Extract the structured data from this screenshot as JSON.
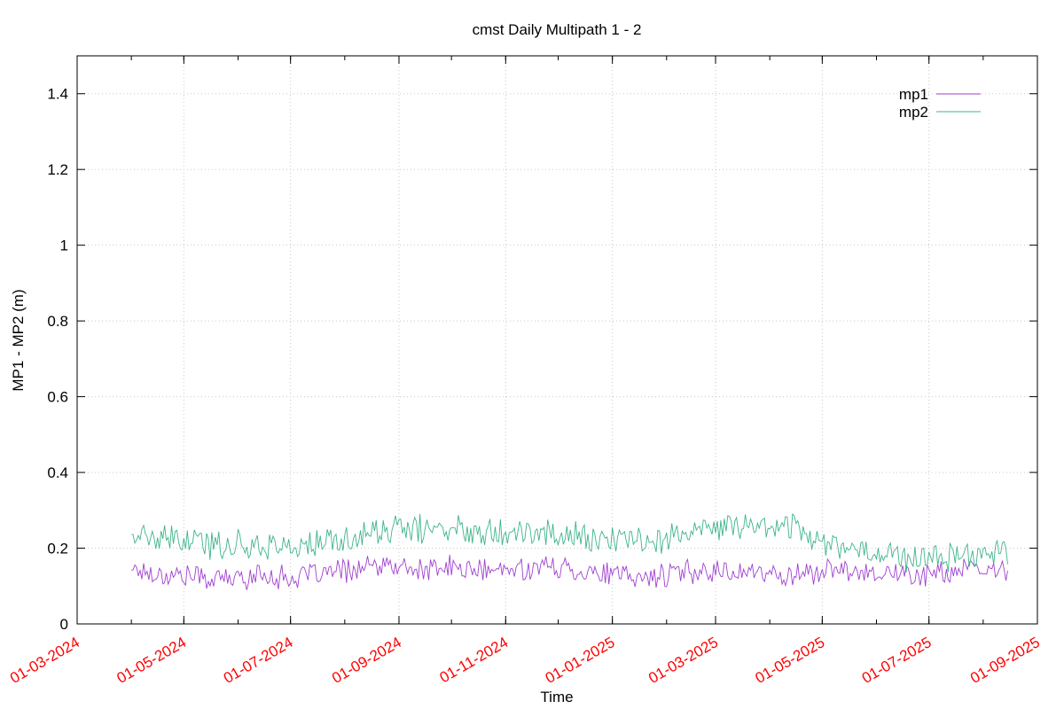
{
  "chart_data": {
    "type": "line",
    "title": "cmst Daily Multipath 1 - 2",
    "xlabel": "Time",
    "ylabel": "MP1 - MP2 (m)",
    "x_type": "date",
    "xlim": [
      "2024-03-01",
      "2025-09-01"
    ],
    "ylim": [
      0,
      1.5
    ],
    "y_ticks": [
      0,
      0.2,
      0.4,
      0.6,
      0.8,
      1,
      1.2,
      1.4
    ],
    "y_tick_labels": [
      "0",
      "0.2",
      "0.4",
      "0.6",
      "0.8",
      "1",
      "1.2",
      "1.4"
    ],
    "x_ticks": [
      "2024-03-01",
      "2024-05-01",
      "2024-07-01",
      "2024-09-01",
      "2024-11-01",
      "2025-01-01",
      "2025-03-01",
      "2025-05-01",
      "2025-07-01",
      "2025-09-01"
    ],
    "x_tick_labels": [
      "01-03-2024",
      "01-05-2024",
      "01-07-2024",
      "01-09-2024",
      "01-11-2024",
      "01-01-2025",
      "01-03-2025",
      "01-05-2025",
      "01-07-2025",
      "01-09-2025"
    ],
    "x_tick_label_color": "#ff0000",
    "grid": true,
    "legend_position": "top-right",
    "series": [
      {
        "name": "mp1",
        "color": "#a040d0",
        "x": [
          "2024-04-01",
          "2024-04-15",
          "2024-05-01",
          "2024-05-15",
          "2024-06-01",
          "2024-06-15",
          "2024-07-01",
          "2024-07-15",
          "2024-08-01",
          "2024-08-15",
          "2024-09-01",
          "2024-09-15",
          "2024-10-01",
          "2024-10-15",
          "2024-11-01",
          "2024-11-15",
          "2024-12-01",
          "2024-12-15",
          "2025-01-01",
          "2025-01-15",
          "2025-02-01",
          "2025-02-15",
          "2025-03-01",
          "2025-03-15",
          "2025-04-01",
          "2025-04-15",
          "2025-05-01",
          "2025-05-15",
          "2025-06-01",
          "2025-06-15",
          "2025-07-01",
          "2025-07-15",
          "2025-08-01",
          "2025-08-15"
        ],
        "values": [
          0.15,
          0.13,
          0.13,
          0.12,
          0.12,
          0.13,
          0.12,
          0.13,
          0.14,
          0.15,
          0.15,
          0.14,
          0.15,
          0.14,
          0.14,
          0.15,
          0.15,
          0.14,
          0.13,
          0.12,
          0.13,
          0.14,
          0.14,
          0.14,
          0.13,
          0.13,
          0.14,
          0.14,
          0.14,
          0.13,
          0.13,
          0.14,
          0.14,
          0.14
        ],
        "noise": 0.045
      },
      {
        "name": "mp2",
        "color": "#3eb489",
        "x": [
          "2024-04-01",
          "2024-04-15",
          "2024-05-01",
          "2024-05-15",
          "2024-06-01",
          "2024-06-15",
          "2024-07-01",
          "2024-07-15",
          "2024-08-01",
          "2024-08-15",
          "2024-09-01",
          "2024-09-15",
          "2024-10-01",
          "2024-10-15",
          "2024-11-01",
          "2024-11-15",
          "2024-12-01",
          "2024-12-15",
          "2025-01-01",
          "2025-01-15",
          "2025-02-01",
          "2025-02-15",
          "2025-03-01",
          "2025-03-15",
          "2025-04-01",
          "2025-04-15",
          "2025-05-01",
          "2025-05-15",
          "2025-06-01",
          "2025-06-15",
          "2025-07-01",
          "2025-07-15",
          "2025-08-01",
          "2025-08-15"
        ],
        "values": [
          0.24,
          0.22,
          0.22,
          0.21,
          0.21,
          0.21,
          0.2,
          0.21,
          0.22,
          0.24,
          0.25,
          0.25,
          0.25,
          0.25,
          0.25,
          0.24,
          0.24,
          0.23,
          0.22,
          0.22,
          0.23,
          0.24,
          0.25,
          0.26,
          0.26,
          0.26,
          0.22,
          0.2,
          0.19,
          0.18,
          0.17,
          0.18,
          0.19,
          0.2
        ],
        "noise": 0.055
      }
    ]
  }
}
